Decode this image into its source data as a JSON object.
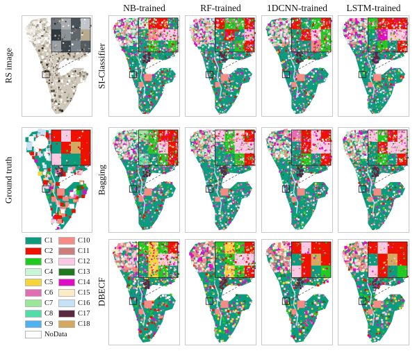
{
  "columns": [
    {
      "label": "NB-trained"
    },
    {
      "label": "RF-trained"
    },
    {
      "label": "1DCNN-trained"
    },
    {
      "label": "LSTM-trained"
    }
  ],
  "row_labels": [
    {
      "label": "SI-Classifier"
    },
    {
      "label": "Bagging"
    },
    {
      "label": "DBECF"
    }
  ],
  "side_labels": [
    {
      "label": "RS image"
    },
    {
      "label": "Ground truth"
    }
  ],
  "legend": {
    "entries": [
      {
        "label": "C1",
        "color": "#0d9b80"
      },
      {
        "label": "C2",
        "color": "#ee1100"
      },
      {
        "label": "C3",
        "color": "#1ecb1e"
      },
      {
        "label": "C4",
        "color": "#c9f6d9"
      },
      {
        "label": "C5",
        "color": "#f7d53a"
      },
      {
        "label": "C6",
        "color": "#e26db4"
      },
      {
        "label": "C7",
        "color": "#99e899"
      },
      {
        "label": "C8",
        "color": "#4fdfa6"
      },
      {
        "label": "C9",
        "color": "#4fb1ef"
      },
      {
        "label": "C10",
        "color": "#f58b84"
      },
      {
        "label": "C11",
        "color": "#ca7e7e"
      },
      {
        "label": "C12",
        "color": "#fcc9e4"
      },
      {
        "label": "C13",
        "color": "#21791f"
      },
      {
        "label": "C14",
        "color": "#de0ec6"
      },
      {
        "label": "C15",
        "color": "#fcecc5"
      },
      {
        "label": "C16",
        "color": "#c6e2f7"
      },
      {
        "label": "C17",
        "color": "#5a2940"
      },
      {
        "label": "C18",
        "color": "#d2a95e"
      }
    ],
    "nodata": {
      "label": "NoData",
      "color": "#ffffff"
    }
  },
  "palettes": {
    "rs_body": [
      [
        "#ffffff",
        4
      ],
      [
        "#ece7dd",
        3
      ],
      [
        "#b5a98f",
        3
      ],
      [
        "#847b69",
        3
      ],
      [
        "#55503f",
        2
      ],
      [
        "#2f2c25",
        2
      ],
      [
        "#9a9181",
        2
      ],
      [
        "#c2baa9",
        2
      ]
    ],
    "rs_top": [
      [
        "#f1eee7",
        4
      ],
      [
        "#ffffff",
        3
      ],
      [
        "#d8d2c5",
        2
      ],
      [
        "#b7af9f",
        1
      ]
    ],
    "gt_body": [
      [
        "C2",
        4
      ],
      [
        "C12",
        3
      ],
      [
        "C10",
        2
      ],
      [
        "C3",
        1
      ],
      [
        "C13",
        1
      ],
      [
        "C14",
        1
      ],
      [
        "C5",
        1
      ],
      [
        "C16",
        1
      ],
      [
        "#ffffff",
        2
      ],
      [
        "C18",
        1
      ],
      [
        "C6",
        1
      ]
    ],
    "gt_top": [
      [
        "C1",
        3
      ],
      [
        "C2",
        2
      ],
      [
        "C12",
        2
      ],
      [
        "#ffffff",
        2
      ],
      [
        "C16",
        2
      ]
    ],
    "class_body": [
      [
        "C14",
        3
      ],
      [
        "C2",
        2
      ],
      [
        "C3",
        2
      ],
      [
        "C12",
        2
      ],
      [
        "C10",
        2
      ],
      [
        "C6",
        2
      ],
      [
        "C5",
        1
      ],
      [
        "C13",
        1
      ],
      [
        "#ffffff",
        1
      ],
      [
        "C4",
        1
      ],
      [
        "C16",
        1
      ]
    ],
    "class_top": [
      [
        "C4",
        3
      ],
      [
        "C12",
        3
      ],
      [
        "C10",
        2
      ],
      [
        "C7",
        2
      ],
      [
        "C14",
        2
      ],
      [
        "C18",
        1
      ],
      [
        "#ffffff",
        1
      ]
    ],
    "dbecf_body": [
      [
        "C14",
        2
      ],
      [
        "C2",
        2
      ],
      [
        "C3",
        2
      ],
      [
        "C12",
        2
      ],
      [
        "C10",
        1
      ],
      [
        "C5",
        2
      ],
      [
        "C13",
        1
      ],
      [
        "C6",
        1
      ],
      [
        "#ffffff",
        1
      ]
    ],
    "dbecf_top": [
      [
        "C10",
        3
      ],
      [
        "C15",
        2
      ],
      [
        "C12",
        2
      ],
      [
        "C11",
        2
      ],
      [
        "C4",
        1
      ],
      [
        "C14",
        1
      ]
    ]
  },
  "panels": [
    {
      "id": "rs-image",
      "slot": "rs",
      "seed": 11,
      "base": "#cfc8bb",
      "speckles": "rs_body",
      "top": "rs_top",
      "count": 1000,
      "size": [
        1,
        3.5
      ],
      "river": "#e6e1d6",
      "dark": false,
      "salmon": false,
      "hole": false,
      "inset": {
        "noise": 0.12,
        "grid": [
          [
            "#6f767e",
            "#a7adb3",
            "#49525a",
            "#c2c6ca"
          ],
          [
            "#2f383e",
            "#8b9298",
            "#5d666c",
            "#b7ab8f"
          ],
          [
            "#99a1a7",
            "#3b444a",
            "#7b838a",
            "#535c62"
          ]
        ]
      }
    },
    {
      "id": "ground-truth",
      "slot": "gt",
      "seed": 22,
      "base": "C1",
      "speckles": "gt_body",
      "top": "gt_top",
      "count": 420,
      "size": [
        3,
        7
      ],
      "river": "C16",
      "dark": true,
      "salmon": true,
      "hole": true,
      "inset": {
        "noise": 0.05,
        "grid": [
          [
            "C2",
            "C12",
            "C2",
            "C2"
          ],
          [
            "C1",
            "C2",
            "C18",
            "C2"
          ],
          [
            "C12",
            "C1",
            "C1",
            "C2"
          ]
        ]
      }
    },
    {
      "id": "si-classifier-nb",
      "slot": "r0c0",
      "seed": 31,
      "base": "C1",
      "speckles": "class_body",
      "top": "class_top",
      "count": 1250,
      "size": [
        1,
        3
      ],
      "river": "C16",
      "dark": true,
      "salmon": true,
      "hole": false,
      "inset": {
        "noise": 0.55,
        "grid": [
          [
            "C4",
            "C2",
            "C2",
            "C1"
          ],
          [
            "C1",
            "C10",
            "C12",
            "C12"
          ],
          [
            "C1",
            "C3",
            "C1",
            "C3"
          ]
        ]
      }
    },
    {
      "id": "si-classifier-rf",
      "slot": "r0c1",
      "seed": 32,
      "base": "C1",
      "speckles": "class_body",
      "top": "class_top",
      "count": 1250,
      "size": [
        1,
        3
      ],
      "river": "C16",
      "dark": true,
      "salmon": true,
      "hole": false,
      "inset": {
        "noise": 0.5,
        "grid": [
          [
            "C2",
            "C3",
            "C3",
            "C2"
          ],
          [
            "C1",
            "C2",
            "C1",
            "C12"
          ],
          [
            "C1",
            "C1",
            "C3",
            "C2"
          ]
        ]
      }
    },
    {
      "id": "si-classifier-1dcnn",
      "slot": "r0c2",
      "seed": 33,
      "base": "C1",
      "speckles": "class_body",
      "top": "class_top",
      "count": 1250,
      "size": [
        1,
        3
      ],
      "river": "C16",
      "dark": true,
      "salmon": true,
      "hole": false,
      "inset": {
        "noise": 0.45,
        "grid": [
          [
            "C2",
            "C1",
            "C3",
            "C2"
          ],
          [
            "C1",
            "C2",
            "C12",
            "C3"
          ],
          [
            "C1",
            "C1",
            "C10",
            "C3"
          ]
        ]
      }
    },
    {
      "id": "si-classifier-lstm",
      "slot": "r0c3",
      "seed": 34,
      "base": "C1",
      "speckles": "class_body",
      "top": "class_top",
      "count": 1250,
      "size": [
        1,
        3
      ],
      "river": "C16",
      "dark": true,
      "salmon": true,
      "hole": false,
      "inset": {
        "noise": 0.5,
        "grid": [
          [
            "C3",
            "C2",
            "C2",
            "C2"
          ],
          [
            "C1",
            "C14",
            "C12",
            "C12"
          ],
          [
            "C1",
            "C3",
            "C1",
            "C2"
          ]
        ]
      }
    },
    {
      "id": "bagging-nb",
      "slot": "r1c0",
      "seed": 41,
      "base": "C1",
      "speckles": "class_body",
      "top": "class_top",
      "count": 1150,
      "size": [
        1,
        3
      ],
      "river": "C16",
      "dark": true,
      "salmon": true,
      "hole": false,
      "inset": {
        "noise": 0.5,
        "grid": [
          [
            "C7",
            "C3",
            "C2",
            "C2"
          ],
          [
            "C1",
            "C3",
            "C12",
            "C2"
          ],
          [
            "C8",
            "C1",
            "C3",
            "C2"
          ]
        ]
      }
    },
    {
      "id": "bagging-rf",
      "slot": "r1c1",
      "seed": 42,
      "base": "C1",
      "speckles": "class_body",
      "top": "class_top",
      "count": 1150,
      "size": [
        1,
        3
      ],
      "river": "C16",
      "dark": true,
      "salmon": true,
      "hole": false,
      "inset": {
        "noise": 0.45,
        "grid": [
          [
            "C12",
            "C3",
            "C12",
            "C2"
          ],
          [
            "C1",
            "C3",
            "C12",
            "C12"
          ],
          [
            "C1",
            "C1",
            "C3",
            "C2"
          ]
        ]
      }
    },
    {
      "id": "bagging-1dcnn",
      "slot": "r1c2",
      "seed": 43,
      "base": "C1",
      "speckles": "class_body",
      "top": "class_top",
      "count": 1150,
      "size": [
        1,
        3
      ],
      "river": "C16",
      "dark": true,
      "salmon": true,
      "hole": false,
      "inset": {
        "noise": 0.4,
        "grid": [
          [
            "C6",
            "C2",
            "C12",
            "C2"
          ],
          [
            "C1",
            "C2",
            "C12",
            "C12"
          ],
          [
            "C1",
            "C3",
            "C1",
            "C2"
          ]
        ]
      }
    },
    {
      "id": "bagging-lstm",
      "slot": "r1c3",
      "seed": 44,
      "base": "C1",
      "speckles": "class_body",
      "top": "class_top",
      "count": 1150,
      "size": [
        1,
        3
      ],
      "river": "C16",
      "dark": true,
      "salmon": true,
      "hole": false,
      "inset": {
        "noise": 0.42,
        "grid": [
          [
            "C12",
            "C3",
            "C2",
            "C12"
          ],
          [
            "C1",
            "C2",
            "C12",
            "C12"
          ],
          [
            "C1",
            "C3",
            "C1",
            "C2"
          ]
        ]
      }
    },
    {
      "id": "dbecf-nb",
      "slot": "r2c0",
      "seed": 51,
      "base": "C1",
      "speckles": "dbecf_body",
      "top": "dbecf_top",
      "count": 950,
      "size": [
        1.5,
        3.5
      ],
      "river": "C16",
      "dark": true,
      "salmon": true,
      "hole": false,
      "inset": {
        "noise": 0.5,
        "grid": [
          [
            "C3",
            "C5",
            "C3",
            "C2"
          ],
          [
            "C1",
            "C5",
            "C12",
            "C12"
          ],
          [
            "C1",
            "C5",
            "C3",
            "C1"
          ]
        ]
      }
    },
    {
      "id": "dbecf-rf",
      "slot": "r2c1",
      "seed": 52,
      "base": "C1",
      "speckles": "dbecf_body",
      "top": "dbecf_top",
      "count": 950,
      "size": [
        1.5,
        3.5
      ],
      "river": "C16",
      "dark": true,
      "salmon": true,
      "hole": false,
      "inset": {
        "noise": 0.45,
        "grid": [
          [
            "C3",
            "C5",
            "C3",
            "C2"
          ],
          [
            "C1",
            "C3",
            "C12",
            "C12"
          ],
          [
            "C1",
            "C5",
            "C3",
            "C2"
          ]
        ]
      }
    },
    {
      "id": "dbecf-1dcnn",
      "slot": "r2c2",
      "seed": 53,
      "base": "C1",
      "speckles": "dbecf_body",
      "top": "dbecf_top",
      "count": 950,
      "size": [
        1.5,
        3.5
      ],
      "river": "C16",
      "dark": true,
      "salmon": true,
      "hole": false,
      "inset": {
        "noise": 0.1,
        "grid": [
          [
            "C2",
            "C12",
            "C2",
            "C2"
          ],
          [
            "C1",
            "C2",
            "C18",
            "C2"
          ],
          [
            "C12",
            "C2",
            "C1",
            "C3"
          ]
        ]
      }
    },
    {
      "id": "dbecf-lstm",
      "slot": "r2c3",
      "seed": 54,
      "base": "C1",
      "speckles": "dbecf_body",
      "top": "dbecf_top",
      "count": 950,
      "size": [
        1.5,
        3.5
      ],
      "river": "C16",
      "dark": true,
      "salmon": true,
      "hole": false,
      "inset": {
        "noise": 0.1,
        "grid": [
          [
            "C2",
            "C12",
            "C2",
            "C2"
          ],
          [
            "C1",
            "C2",
            "C18",
            "C2"
          ],
          [
            "C12",
            "C2",
            "C1",
            "C3"
          ]
        ]
      }
    }
  ]
}
